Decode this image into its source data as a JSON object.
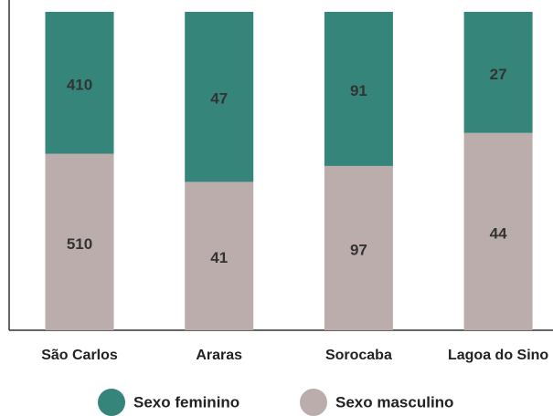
{
  "chart_data": {
    "type": "bar",
    "stacked": "percent",
    "categories": [
      "São Carlos",
      "Araras",
      "Sorocaba",
      "Lagoa do Sino"
    ],
    "series": [
      {
        "name": "Sexo feminino",
        "color": "#35857a",
        "values": [
          410,
          47,
          91,
          27
        ]
      },
      {
        "name": "Sexo masculino",
        "color": "#bbadab",
        "values": [
          510,
          41,
          97,
          44
        ]
      }
    ],
    "legend": "bottom"
  }
}
